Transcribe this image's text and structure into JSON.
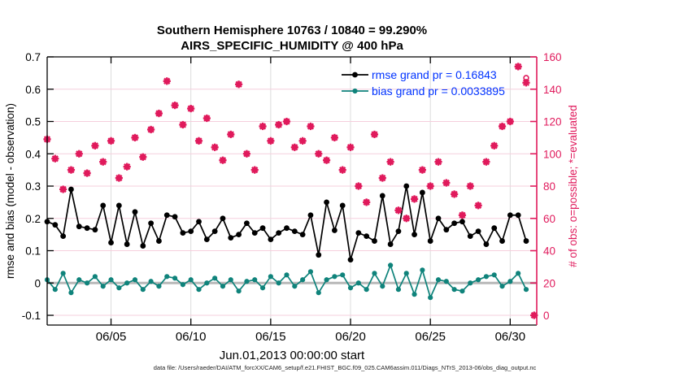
{
  "figure": {
    "title_line1": "Southern Hemisphere 10763 / 10840 = 99.290%",
    "title_line2": "AIRS_SPECIFIC_HUMIDITY @ 400 hPa",
    "xlabel": "Jun.01,2013 00:00:00 start",
    "ylabel_left": "rmse and bias (model - observation)",
    "ylabel_right": "# of obs: o=possible; *=evaluated",
    "footer": "data file: /Users/raeder/DAI/ATM_forcXX/CAM6_setup/f.e21.FHIST_BGC.f09_025.CAM6assim.011/Diags_NTrS_2013-06/obs_diag_output.nc",
    "legend": [
      {
        "label": "rmse grand pr = 0.16843",
        "series": "rmse"
      },
      {
        "label": "bias grand pr = 0.0033895",
        "series": "bias"
      }
    ]
  },
  "chart_data": {
    "type": "line",
    "title": "Southern Hemisphere 10763 / 10840 = 99.290%",
    "subtitle": "AIRS_SPECIFIC_HUMIDITY @ 400 hPa",
    "xlabel": "Jun.01,2013 00:00:00 start",
    "ylabel_left": "rmse and bias (model - observation)",
    "ylabel_right": "# of obs: o=possible; *=evaluated",
    "x_unit": "days since 2013-06-01 00:00",
    "xticks": [
      {
        "day": 4,
        "label": "06/05"
      },
      {
        "day": 9,
        "label": "06/10"
      },
      {
        "day": 14,
        "label": "06/15"
      },
      {
        "day": 19,
        "label": "06/20"
      },
      {
        "day": 24,
        "label": "06/25"
      },
      {
        "day": 29,
        "label": "06/30"
      }
    ],
    "yticks_left": {
      "values": [
        0.7,
        0.6,
        0.5,
        0.4,
        0.3,
        0.2,
        0.1,
        0,
        -0.1
      ],
      "labels": [
        "0.7",
        "0.6",
        "0.5",
        "0.4",
        "0.3",
        "0.2",
        "0.1",
        "0",
        "-0.1"
      ]
    },
    "yticks_right": {
      "values": [
        160,
        140,
        120,
        100,
        80,
        60,
        40,
        20,
        0
      ],
      "labels": [
        "160",
        "140",
        "120",
        "100",
        "80",
        "60",
        "40",
        "20",
        "0"
      ]
    },
    "ylim_left": [
      -0.1,
      0.7
    ],
    "ylim_right": [
      0,
      160
    ],
    "grid": true,
    "legend_position": "top-right-inside",
    "x_days": [
      0,
      0.5,
      1,
      1.5,
      2,
      2.5,
      3,
      3.5,
      4,
      4.5,
      5,
      5.5,
      6,
      6.5,
      7,
      7.5,
      8,
      8.5,
      9,
      9.5,
      10,
      10.5,
      11,
      11.5,
      12,
      12.5,
      13,
      13.5,
      14,
      14.5,
      15,
      15.5,
      16,
      16.5,
      17,
      17.5,
      18,
      18.5,
      19,
      19.5,
      20,
      20.5,
      21,
      21.5,
      22,
      22.5,
      23,
      23.5,
      24,
      24.5,
      25,
      25.5,
      26,
      26.5,
      27,
      27.5,
      28,
      28.5,
      29,
      29.5,
      30
    ],
    "series": [
      {
        "name": "rmse grand pr = 0.16843",
        "short": "rmse",
        "axis": "left",
        "color": "#000000",
        "marker": "filled-circle",
        "grand_value": 0.16843,
        "values": [
          0.19,
          0.18,
          0.145,
          0.29,
          0.175,
          0.17,
          0.165,
          0.24,
          0.125,
          0.24,
          0.12,
          0.22,
          0.115,
          0.185,
          0.13,
          0.21,
          0.205,
          0.155,
          0.16,
          0.19,
          0.135,
          0.16,
          0.2,
          0.14,
          0.15,
          0.185,
          0.155,
          0.17,
          0.135,
          0.155,
          0.17,
          0.16,
          0.15,
          0.21,
          0.087,
          0.25,
          0.163,
          0.24,
          0.072,
          0.155,
          0.145,
          0.13,
          0.27,
          0.12,
          0.16,
          0.3,
          0.15,
          0.28,
          0.13,
          0.2,
          0.165,
          0.185,
          0.19,
          0.145,
          0.16,
          0.12,
          0.17,
          0.13,
          0.21,
          0.21,
          0.13
        ]
      },
      {
        "name": "bias grand pr = 0.0033895",
        "short": "bias",
        "axis": "left",
        "color": "#0f837b",
        "marker": "filled-circle",
        "grand_value": 0.0033895,
        "values": [
          0.01,
          -0.02,
          0.03,
          -0.03,
          0.01,
          0,
          0.02,
          -0.01,
          0.01,
          -0.015,
          0,
          0.01,
          -0.02,
          0.005,
          -0.01,
          0.02,
          0.015,
          -0.005,
          0.01,
          -0.02,
          0,
          0.015,
          -0.01,
          0.01,
          -0.025,
          0.005,
          0.01,
          -0.015,
          0.02,
          0,
          0.025,
          -0.01,
          0.01,
          0.035,
          -0.03,
          0.01,
          0.02,
          0.025,
          -0.015,
          0,
          -0.02,
          0.03,
          -0.01,
          0.055,
          -0.02,
          0.03,
          -0.035,
          0.04,
          -0.045,
          0.01,
          0.005,
          -0.02,
          -0.025,
          0,
          0.01,
          0.02,
          0.025,
          -0.01,
          0.005,
          0.03,
          -0.02
        ]
      },
      {
        "name": "# of obs possible (o)",
        "short": "obs-possible",
        "axis": "right",
        "color": "#e01a5c",
        "marker": "open-circle",
        "x_days": [
          0,
          0.5,
          1,
          1.5,
          2,
          2.5,
          3,
          3.5,
          4,
          4.5,
          5,
          5.5,
          6,
          6.5,
          7,
          7.5,
          8,
          8.5,
          9,
          9.5,
          10,
          10.5,
          11,
          11.5,
          12,
          12.5,
          13,
          13.5,
          14,
          14.5,
          15,
          15.5,
          16,
          16.5,
          17,
          17.5,
          18,
          18.5,
          19,
          19.5,
          20,
          20.5,
          21,
          21.5,
          22,
          22.5,
          23,
          23.5,
          24,
          24.5,
          25,
          25.5,
          26,
          26.5,
          27,
          27.5,
          28,
          28.5,
          29,
          29.5,
          30,
          30.5
        ],
        "values": [
          109,
          97,
          78,
          90,
          100,
          88,
          105,
          95,
          108,
          85,
          92,
          110,
          98,
          115,
          125,
          145,
          130,
          118,
          128,
          108,
          122,
          104,
          96,
          112,
          143,
          100,
          90,
          117,
          108,
          118,
          120,
          104,
          108,
          117,
          100,
          96,
          110,
          90,
          104,
          80,
          70,
          112,
          85,
          95,
          65,
          60,
          72,
          90,
          80,
          95,
          82,
          75,
          62,
          80,
          68,
          95,
          105,
          117,
          120,
          154,
          147,
          0
        ]
      },
      {
        "name": "# of obs evaluated (*)",
        "short": "obs-evaluated",
        "axis": "right",
        "color": "#e01a5c",
        "marker": "asterisk",
        "x_days": [
          0,
          0.5,
          1,
          1.5,
          2,
          2.5,
          3,
          3.5,
          4,
          4.5,
          5,
          5.5,
          6,
          6.5,
          7,
          7.5,
          8,
          8.5,
          9,
          9.5,
          10,
          10.5,
          11,
          11.5,
          12,
          12.5,
          13,
          13.5,
          14,
          14.5,
          15,
          15.5,
          16,
          16.5,
          17,
          17.5,
          18,
          18.5,
          19,
          19.5,
          20,
          20.5,
          21,
          21.5,
          22,
          22.5,
          23,
          23.5,
          24,
          24.5,
          25,
          25.5,
          26,
          26.5,
          27,
          27.5,
          28,
          28.5,
          29,
          29.5,
          30,
          30.5
        ],
        "values": [
          109,
          97,
          78,
          90,
          100,
          88,
          105,
          95,
          108,
          85,
          92,
          110,
          98,
          115,
          125,
          145,
          130,
          118,
          128,
          108,
          122,
          104,
          96,
          112,
          143,
          100,
          90,
          117,
          108,
          118,
          120,
          104,
          108,
          117,
          100,
          96,
          110,
          90,
          104,
          80,
          70,
          112,
          85,
          95,
          65,
          60,
          72,
          90,
          80,
          95,
          82,
          75,
          62,
          80,
          68,
          95,
          105,
          117,
          120,
          154,
          144,
          0
        ]
      }
    ],
    "colors": {
      "obs": "#e01a5c",
      "rmse": "#000000",
      "bias": "#0f837b",
      "legend_text": "#0033ff",
      "grid_horizontal": "#f6cfdd",
      "grid_vertical": "#dcdcdc",
      "zero_line": "#b8b8b8",
      "right_axis": "#e01a5c"
    }
  }
}
